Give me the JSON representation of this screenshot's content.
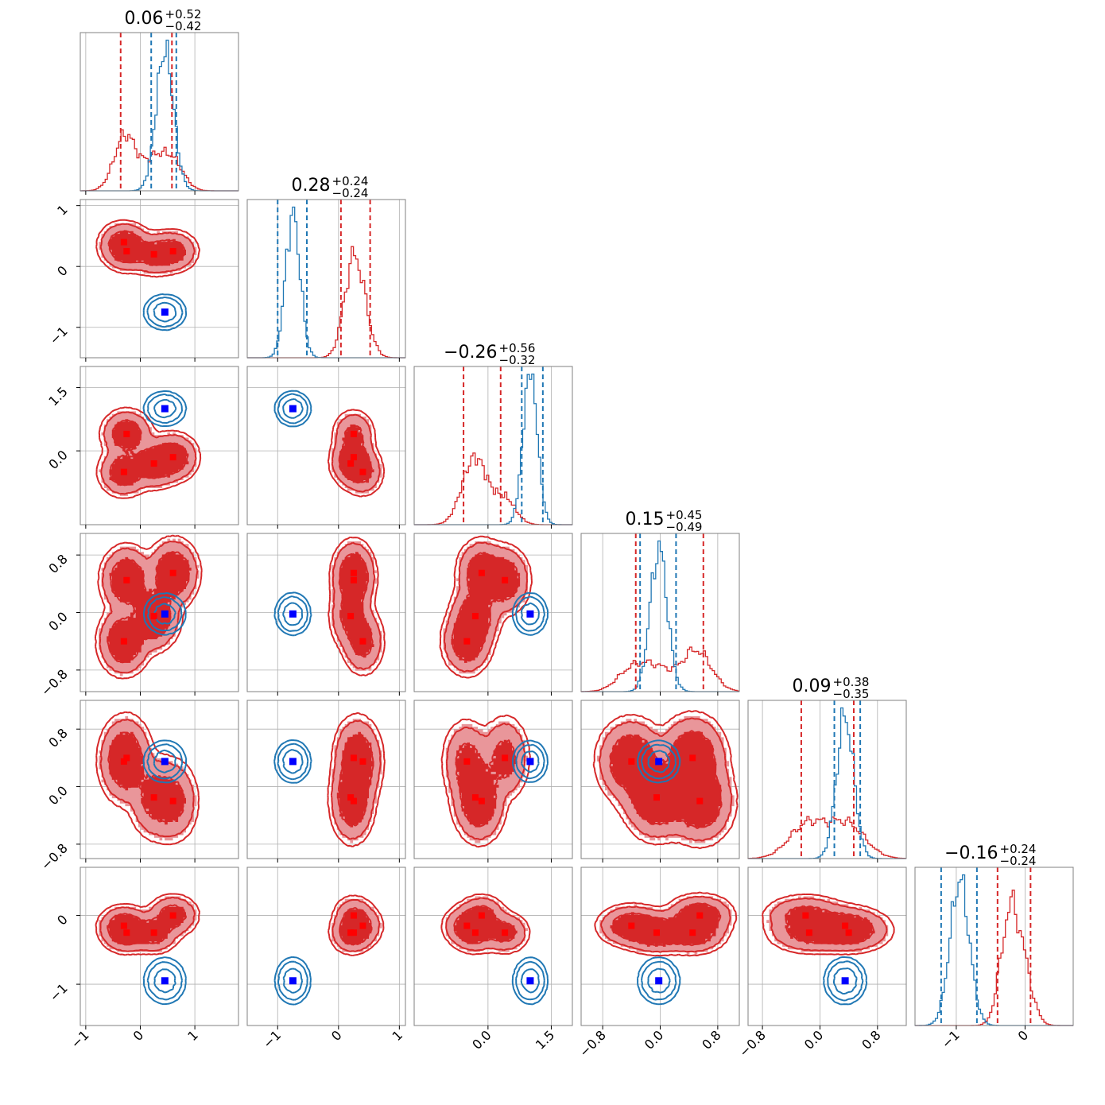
{
  "figure": {
    "colors": {
      "red": "#d62728",
      "blue": "#1f77b4",
      "marker_red": "#ff0000",
      "marker_blue": "#0000ff",
      "fill_dark": "#d62728",
      "fill_light": "#e9969a"
    }
  },
  "chart_data": {
    "type": "corner",
    "n_params": 6,
    "grid": true,
    "legend": "none",
    "axes": [
      {
        "range": [
          -1.1,
          1.8
        ],
        "ticks": [
          -1,
          0,
          1
        ],
        "ticklabels": [
          "−1",
          "0",
          "1"
        ]
      },
      {
        "range": [
          -1.5,
          1.1
        ],
        "ticks": [
          -1,
          0,
          1
        ],
        "ticklabels": [
          "−1",
          "0",
          "1"
        ]
      },
      {
        "range": [
          -1.75,
          2.0
        ],
        "ticks": [
          0.0,
          1.5
        ],
        "ticklabels": [
          "0.0",
          "1.5"
        ]
      },
      {
        "range": [
          -1.1,
          1.1
        ],
        "ticks": [
          -0.8,
          0.0,
          0.8
        ],
        "ticklabels": [
          "−0.8",
          "0.0",
          "0.8"
        ]
      },
      {
        "range": [
          -1.0,
          1.2
        ],
        "ticks": [
          -0.8,
          0.0,
          0.8
        ],
        "ticklabels": [
          "−0.8",
          "0.0",
          "0.8"
        ]
      },
      {
        "range": [
          -1.6,
          0.7
        ],
        "ticks": [
          -1,
          0
        ],
        "ticklabels": [
          "−1",
          "0"
        ]
      }
    ],
    "titles": [
      {
        "main": "0.06",
        "plus": "+0.52",
        "minus": "−0.42"
      },
      {
        "main": "0.28",
        "plus": "+0.24",
        "minus": "−0.24"
      },
      {
        "main": "−0.26",
        "plus": "+0.56",
        "minus": "−0.32"
      },
      {
        "main": "0.15",
        "plus": "+0.45",
        "minus": "−0.49"
      },
      {
        "main": "0.09",
        "plus": "+0.38",
        "minus": "−0.35"
      },
      {
        "main": "−0.16",
        "plus": "+0.24",
        "minus": "−0.24"
      }
    ],
    "red_modes": [
      {
        "w": 0.25,
        "mu": [
          -0.3,
          0.4,
          -0.5,
          -0.4,
          0.35,
          -0.15
        ],
        "sd": [
          0.2,
          0.15,
          0.25,
          0.2,
          0.25,
          0.13
        ]
      },
      {
        "w": 0.25,
        "mu": [
          -0.25,
          0.25,
          0.4,
          0.45,
          0.4,
          -0.25
        ],
        "sd": [
          0.2,
          0.15,
          0.25,
          0.2,
          0.25,
          0.13
        ]
      },
      {
        "w": 0.25,
        "mu": [
          0.25,
          0.2,
          -0.3,
          -0.05,
          -0.15,
          -0.25
        ],
        "sd": [
          0.2,
          0.15,
          0.25,
          0.2,
          0.25,
          0.13
        ]
      },
      {
        "w": 0.25,
        "mu": [
          0.6,
          0.25,
          -0.15,
          0.55,
          -0.2,
          0.0
        ],
        "sd": [
          0.2,
          0.15,
          0.25,
          0.2,
          0.25,
          0.13
        ]
      }
    ],
    "blue_mode": {
      "mu": [
        0.45,
        -0.75,
        1.0,
        -0.02,
        0.35,
        -0.95
      ],
      "sd": [
        0.16,
        0.12,
        0.17,
        0.12,
        0.12,
        0.14
      ]
    },
    "red_quantiles": [
      [
        -0.36,
        0.58
      ],
      [
        0.04,
        0.52
      ],
      [
        -0.58,
        0.3
      ],
      [
        -0.34,
        0.6
      ],
      [
        -0.26,
        0.47
      ],
      [
        -0.4,
        0.08
      ]
    ],
    "blue_quantiles": [
      [
        0.2,
        0.66
      ],
      [
        -1.0,
        -0.52
      ],
      [
        0.8,
        1.3
      ],
      [
        -0.28,
        0.22
      ],
      [
        0.2,
        0.56
      ],
      [
        -1.22,
        -0.7
      ]
    ],
    "red_markers": [
      {
        "vals": [
          -0.3,
          0.4,
          -0.5,
          -0.4,
          0.35,
          -0.15
        ]
      },
      {
        "vals": [
          -0.25,
          0.25,
          0.4,
          0.45,
          0.4,
          -0.25
        ]
      },
      {
        "vals": [
          0.25,
          0.2,
          -0.3,
          -0.05,
          -0.15,
          -0.25
        ]
      },
      {
        "vals": [
          0.6,
          0.25,
          -0.15,
          0.55,
          -0.2,
          0.0
        ]
      }
    ],
    "blue_marker": {
      "vals": [
        0.45,
        -0.75,
        1.0,
        -0.02,
        0.35,
        -0.95
      ]
    }
  }
}
